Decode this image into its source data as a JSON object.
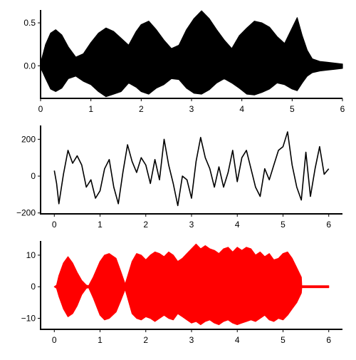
{
  "chart_data": [
    {
      "type": "line",
      "title": "",
      "xlabel": "",
      "ylabel": "",
      "xlim": [
        0,
        6
      ],
      "ylim": [
        -0.38,
        0.65
      ],
      "xticks": [
        0,
        1,
        2,
        3,
        4,
        5,
        6
      ],
      "xtick_labels": [
        "0",
        "1",
        "2",
        "3",
        "4",
        "5",
        "6"
      ],
      "yticks": [
        0.0,
        0.5
      ],
      "ytick_labels": [
        "0.0",
        "0.5"
      ],
      "grid": false,
      "color": "#000000",
      "envelope": {
        "x": [
          0.0,
          0.1,
          0.2,
          0.3,
          0.42,
          0.55,
          0.7,
          0.85,
          1.0,
          1.15,
          1.3,
          1.45,
          1.6,
          1.75,
          1.9,
          2.0,
          2.15,
          2.3,
          2.45,
          2.6,
          2.75,
          2.9,
          3.05,
          3.2,
          3.35,
          3.5,
          3.65,
          3.8,
          3.95,
          4.1,
          4.25,
          4.4,
          4.55,
          4.7,
          4.85,
          5.0,
          5.1,
          5.2,
          5.3,
          5.4,
          5.55,
          5.7,
          5.85,
          6.0
        ],
        "upper": [
          0.03,
          0.25,
          0.38,
          0.42,
          0.36,
          0.22,
          0.1,
          0.14,
          0.27,
          0.38,
          0.44,
          0.4,
          0.32,
          0.24,
          0.4,
          0.48,
          0.52,
          0.42,
          0.3,
          0.2,
          0.24,
          0.42,
          0.55,
          0.64,
          0.55,
          0.42,
          0.3,
          0.2,
          0.35,
          0.44,
          0.52,
          0.5,
          0.45,
          0.34,
          0.26,
          0.44,
          0.56,
          0.35,
          0.18,
          0.08,
          0.05,
          0.04,
          0.03,
          0.02
        ],
        "lower": [
          -0.02,
          -0.15,
          -0.27,
          -0.3,
          -0.26,
          -0.15,
          -0.12,
          -0.18,
          -0.22,
          -0.3,
          -0.36,
          -0.33,
          -0.3,
          -0.2,
          -0.25,
          -0.3,
          -0.33,
          -0.26,
          -0.22,
          -0.15,
          -0.16,
          -0.26,
          -0.32,
          -0.33,
          -0.28,
          -0.2,
          -0.15,
          -0.2,
          -0.26,
          -0.33,
          -0.34,
          -0.31,
          -0.27,
          -0.2,
          -0.22,
          -0.27,
          -0.29,
          -0.2,
          -0.12,
          -0.08,
          -0.06,
          -0.05,
          -0.04,
          -0.03
        ]
      }
    },
    {
      "type": "line",
      "title": "",
      "xlabel": "",
      "ylabel": "",
      "xlim": [
        -0.3,
        6.3
      ],
      "ylim": [
        -205,
        275
      ],
      "xticks": [
        0,
        1,
        2,
        3,
        4,
        5,
        6
      ],
      "xtick_labels": [
        "0",
        "1",
        "2",
        "3",
        "4",
        "5",
        "6"
      ],
      "yticks": [
        -200,
        0,
        200
      ],
      "ytick_labels": [
        "−200",
        "0",
        "200"
      ],
      "grid": false,
      "color": "#000000",
      "series": [
        {
          "x": [
            0.0,
            0.05,
            0.1,
            0.15,
            0.2,
            0.3,
            0.4,
            0.5,
            0.6,
            0.7,
            0.8,
            0.9,
            1.0,
            1.1,
            1.2,
            1.3,
            1.4,
            1.5,
            1.6,
            1.7,
            1.8,
            1.9,
            2.0,
            2.1,
            2.2,
            2.3,
            2.4,
            2.5,
            2.6,
            2.7,
            2.8,
            2.9,
            3.0,
            3.1,
            3.2,
            3.3,
            3.4,
            3.5,
            3.6,
            3.7,
            3.8,
            3.9,
            4.0,
            4.1,
            4.2,
            4.3,
            4.4,
            4.5,
            4.6,
            4.7,
            4.8,
            4.9,
            5.0,
            5.1,
            5.2,
            5.3,
            5.4,
            5.5,
            5.6,
            5.7,
            5.8,
            5.9,
            6.0
          ],
          "y": [
            30,
            -40,
            -150,
            -70,
            10,
            140,
            70,
            110,
            60,
            -60,
            -20,
            -120,
            -80,
            40,
            90,
            -60,
            -150,
            20,
            170,
            80,
            20,
            100,
            60,
            -40,
            90,
            -20,
            200,
            60,
            -40,
            -160,
            0,
            -20,
            -120,
            80,
            210,
            100,
            40,
            -60,
            50,
            -60,
            20,
            140,
            -30,
            100,
            140,
            40,
            -60,
            -110,
            40,
            -20,
            60,
            140,
            160,
            240,
            60,
            -60,
            -130,
            130,
            -110,
            40,
            160,
            10,
            40
          ]
        }
      ]
    },
    {
      "type": "line",
      "title": "",
      "xlabel": "",
      "ylabel": "",
      "xlim": [
        -0.3,
        6.3
      ],
      "ylim": [
        -13.5,
        14.5
      ],
      "xticks": [
        0,
        1,
        2,
        3,
        4,
        5,
        6
      ],
      "xtick_labels": [
        "0",
        "1",
        "2",
        "3",
        "4",
        "5",
        "6"
      ],
      "yticks": [
        -10,
        0,
        10
      ],
      "ytick_labels": [
        "−10",
        "0",
        "10"
      ],
      "grid": false,
      "color": "#ff0000",
      "envelope": {
        "x": [
          0.0,
          0.05,
          0.1,
          0.2,
          0.3,
          0.4,
          0.5,
          0.6,
          0.7,
          0.75,
          0.85,
          1.0,
          1.1,
          1.2,
          1.35,
          1.45,
          1.55,
          1.7,
          1.8,
          1.9,
          2.0,
          2.1,
          2.2,
          2.3,
          2.4,
          2.5,
          2.6,
          2.7,
          2.8,
          2.9,
          3.0,
          3.1,
          3.2,
          3.3,
          3.4,
          3.5,
          3.6,
          3.7,
          3.8,
          3.9,
          4.0,
          4.1,
          4.2,
          4.3,
          4.4,
          4.5,
          4.6,
          4.7,
          4.8,
          4.9,
          5.0,
          5.1,
          5.2,
          5.3,
          5.4,
          5.41,
          5.6,
          5.8,
          6.0
        ],
        "upper": [
          0.0,
          0.5,
          3.5,
          7.5,
          9.5,
          7.5,
          4.5,
          2.0,
          0.5,
          0.3,
          3.0,
          8.0,
          10.0,
          10.5,
          9.0,
          5.0,
          0.8,
          8.0,
          10.5,
          10.0,
          8.5,
          10.0,
          11.0,
          10.5,
          9.5,
          11.0,
          10.0,
          8.0,
          9.0,
          10.5,
          12.0,
          13.5,
          12.0,
          13.0,
          12.0,
          11.5,
          10.5,
          12.0,
          12.5,
          11.0,
          12.5,
          11.5,
          12.5,
          12.0,
          10.0,
          11.0,
          9.5,
          10.5,
          8.5,
          9.0,
          10.5,
          11.0,
          9.0,
          6.0,
          3.0,
          0.3,
          0.3,
          0.3,
          0.3
        ],
        "lower": [
          0.0,
          -0.5,
          -3.0,
          -7.0,
          -9.5,
          -8.5,
          -6.0,
          -2.5,
          -0.5,
          -0.3,
          -3.5,
          -9.0,
          -10.5,
          -10.0,
          -8.0,
          -4.5,
          -0.8,
          -8.5,
          -10.0,
          -10.5,
          -9.5,
          -10.0,
          -11.0,
          -10.0,
          -9.0,
          -10.0,
          -10.5,
          -8.5,
          -9.5,
          -10.5,
          -11.5,
          -11.0,
          -12.0,
          -11.0,
          -10.5,
          -11.5,
          -12.0,
          -11.0,
          -10.5,
          -11.5,
          -12.0,
          -11.5,
          -11.0,
          -10.5,
          -11.0,
          -10.0,
          -9.0,
          -10.5,
          -11.0,
          -10.0,
          -10.5,
          -9.0,
          -7.0,
          -5.0,
          -2.0,
          -0.3,
          -0.3,
          -0.3,
          -0.3
        ]
      }
    }
  ]
}
